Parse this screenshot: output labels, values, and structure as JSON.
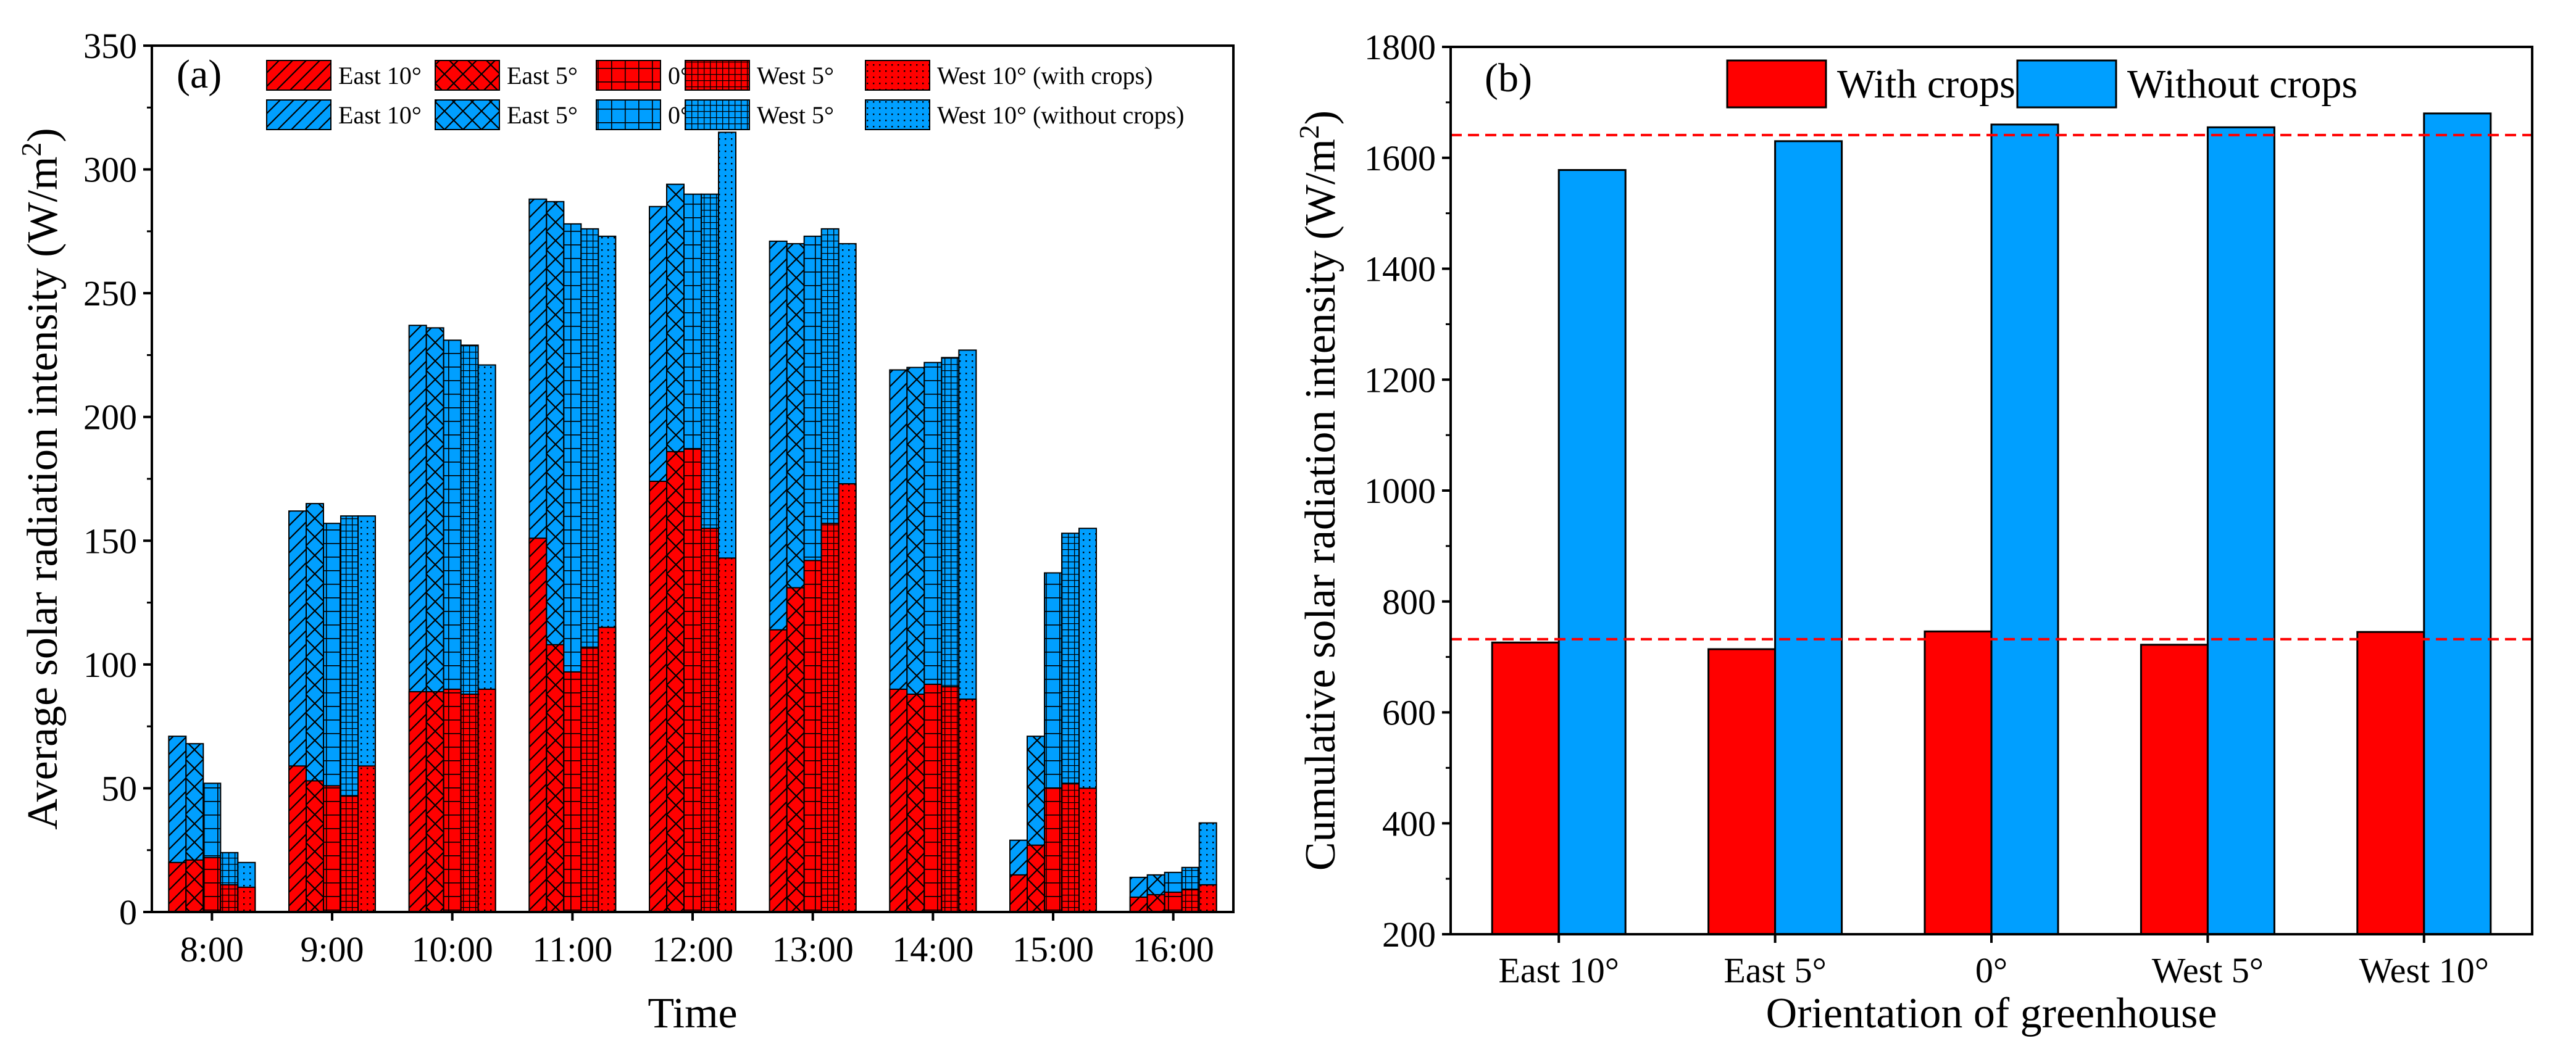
{
  "colors": {
    "with_crops": "#ff0000",
    "without_crops": "#009fff",
    "reference_line": "#ff0000",
    "pattern_line": "#000000"
  },
  "chart_data": [
    {
      "id": "a",
      "type": "bar",
      "panel_label": "(a)",
      "xlabel": "Time",
      "ylabel_main": "Average solar radiation intensity (W/m",
      "ylabel_sup": "2",
      "ylabel_close": ")",
      "ylim": [
        0,
        350
      ],
      "yticks": [
        0,
        50,
        100,
        150,
        200,
        250,
        300,
        350
      ],
      "categories": [
        "8:00",
        "9:00",
        "10:00",
        "11:00",
        "12:00",
        "13:00",
        "14:00",
        "15:00",
        "16:00"
      ],
      "legend": {
        "rows": [
          {
            "suffix": "(with crops)",
            "entries": [
              {
                "label": "East 10°",
                "pattern": "diag"
              },
              {
                "label": "East 5°",
                "pattern": "cross"
              },
              {
                "label": "0°",
                "pattern": "grid"
              },
              {
                "label": "West 5°",
                "pattern": "fine"
              },
              {
                "label": "West 10° (with crops)",
                "pattern": "dots"
              }
            ]
          },
          {
            "suffix": "(without crops)",
            "entries": [
              {
                "label": "East 10°",
                "pattern": "diag"
              },
              {
                "label": "East 5°",
                "pattern": "cross"
              },
              {
                "label": "0°",
                "pattern": "grid"
              },
              {
                "label": "West 5°",
                "pattern": "fine"
              },
              {
                "label": "West 10° (without crops)",
                "pattern": "dots"
              }
            ]
          }
        ]
      },
      "orientations": [
        "East 10°",
        "East 5°",
        "0°",
        "West 5°",
        "West 10°"
      ],
      "series": [
        {
          "name": "With crops",
          "values": [
            [
              20,
              21,
              22,
              11,
              10
            ],
            [
              59,
              53,
              51,
              47,
              59
            ],
            [
              89,
              89,
              90,
              88,
              90
            ],
            [
              151,
              108,
              97,
              107,
              115
            ],
            [
              174,
              186,
              187,
              155,
              143
            ],
            [
              114,
              131,
              142,
              157,
              173
            ],
            [
              90,
              88,
              92,
              91,
              86
            ],
            [
              15,
              27,
              50,
              52,
              50
            ],
            [
              6,
              7,
              8,
              9,
              11
            ]
          ]
        },
        {
          "name": "Without crops",
          "values": [
            [
              71,
              68,
              52,
              24,
              20
            ],
            [
              162,
              165,
              157,
              160,
              160
            ],
            [
              237,
              236,
              231,
              229,
              221
            ],
            [
              288,
              287,
              278,
              276,
              273
            ],
            [
              285,
              294,
              290,
              290,
              315
            ],
            [
              271,
              270,
              273,
              276,
              270
            ],
            [
              219,
              220,
              222,
              224,
              227
            ],
            [
              29,
              71,
              137,
              153,
              155
            ],
            [
              14,
              15,
              16,
              18,
              36
            ]
          ]
        }
      ]
    },
    {
      "id": "b",
      "type": "bar",
      "panel_label": "(b)",
      "xlabel": "Orientation of greenhouse",
      "ylabel_main": "Cumulative solar radiation intensity (W/m",
      "ylabel_sup": "2",
      "ylabel_close": ")",
      "ylim": [
        200,
        1800
      ],
      "yticks": [
        200,
        400,
        600,
        800,
        1000,
        1200,
        1400,
        1600,
        1800
      ],
      "categories": [
        "East 10°",
        "East 5°",
        "0°",
        "West 5°",
        "West 10°"
      ],
      "series": [
        {
          "name": "With crops",
          "values": [
            726,
            714,
            746,
            722,
            745
          ]
        },
        {
          "name": "Without crops",
          "values": [
            1578,
            1630,
            1660,
            1655,
            1680
          ]
        }
      ],
      "reference_lines": [
        732,
        1641
      ],
      "legend": {
        "position": "top",
        "entries": [
          "With crops",
          "Without crops"
        ]
      }
    }
  ]
}
